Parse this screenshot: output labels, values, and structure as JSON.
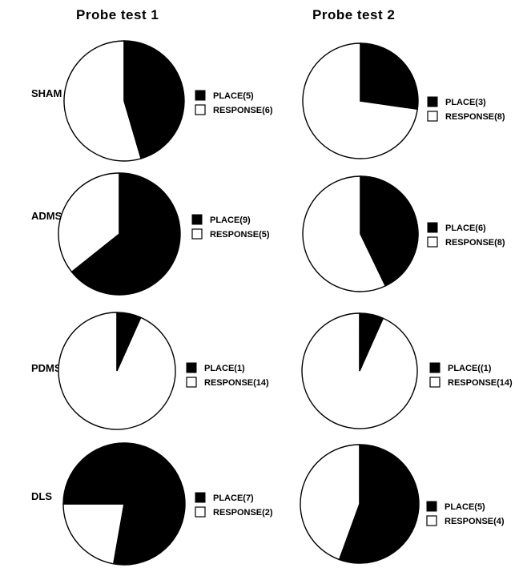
{
  "chart_data": [
    {
      "type": "pie",
      "panel": "Probe test 1",
      "group": "SHAM",
      "slices": [
        {
          "label": "PLACE",
          "value": 5,
          "legend": "PLACE(5)"
        },
        {
          "label": "RESPONSE",
          "value": 6,
          "legend": "RESPONSE(6)"
        }
      ]
    },
    {
      "type": "pie",
      "panel": "Probe test 2",
      "group": "SHAM",
      "slices": [
        {
          "label": "PLACE",
          "value": 3,
          "legend": "PLACE(3)"
        },
        {
          "label": "RESPONSE",
          "value": 8,
          "legend": "RESPONSE(8)"
        }
      ]
    },
    {
      "type": "pie",
      "panel": "Probe test 1",
      "group": "ADMS",
      "slices": [
        {
          "label": "PLACE",
          "value": 9,
          "legend": "PLACE(9)"
        },
        {
          "label": "RESPONSE",
          "value": 5,
          "legend": "RESPONSE(5)"
        }
      ]
    },
    {
      "type": "pie",
      "panel": "Probe test 2",
      "group": "ADMS",
      "slices": [
        {
          "label": "PLACE",
          "value": 6,
          "legend": "PLACE(6)"
        },
        {
          "label": "RESPONSE",
          "value": 8,
          "legend": "RESPONSE(8)"
        }
      ]
    },
    {
      "type": "pie",
      "panel": "Probe test 1",
      "group": "PDMS",
      "slices": [
        {
          "label": "PLACE",
          "value": 1,
          "legend": "PLACE(1)"
        },
        {
          "label": "RESPONSE",
          "value": 14,
          "legend": "RESPONSE(14)"
        }
      ]
    },
    {
      "type": "pie",
      "panel": "Probe test 2",
      "group": "PDMS",
      "slices": [
        {
          "label": "PLACE",
          "value": 1,
          "legend": "PLACE((1)"
        },
        {
          "label": "RESPONSE",
          "value": 14,
          "legend": "RESPONSE(14)"
        }
      ]
    },
    {
      "type": "pie",
      "panel": "Probe test 1",
      "group": "DLS",
      "slices": [
        {
          "label": "PLACE",
          "value": 7,
          "legend": "PLACE(7)"
        },
        {
          "label": "RESPONSE",
          "value": 2,
          "legend": "RESPONSE(2)"
        }
      ]
    },
    {
      "type": "pie",
      "panel": "Probe test 2",
      "group": "DLS",
      "slices": [
        {
          "label": "PLACE",
          "value": 5,
          "legend": "PLACE(5)"
        },
        {
          "label": "RESPONSE",
          "value": 4,
          "legend": "RESPONSE(4)"
        }
      ]
    }
  ],
  "column_titles": [
    "Probe test  1",
    "Probe test  2"
  ],
  "row_labels": [
    "SHAM",
    "ADMS",
    "PDMS",
    "DLS"
  ],
  "colors": {
    "place": "#000000",
    "response": "#ffffff",
    "outline": "#000000"
  }
}
